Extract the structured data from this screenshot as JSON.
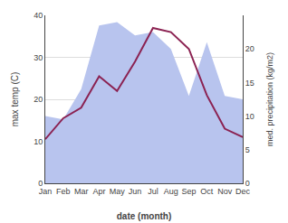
{
  "chart_data": {
    "type": "line",
    "x_label": "date (month)",
    "y_label": "max temp (C)",
    "y2_label": "med. precipitation (kg/m2)",
    "categories": [
      "Jan",
      "Feb",
      "Mar",
      "Apr",
      "May",
      "Jun",
      "Jul",
      "Aug",
      "Sep",
      "Oct",
      "Nov",
      "Dec"
    ],
    "series": [
      {
        "type": "area",
        "axis": "y2",
        "color": "#b8c4ee",
        "values": [
          10.0,
          9.5,
          14.0,
          23.5,
          24.0,
          22.0,
          22.5,
          20.0,
          13.0,
          21.0,
          13.0,
          12.5
        ]
      },
      {
        "type": "line",
        "color": "#8B2252",
        "values": [
          10.5,
          15.5,
          18.0,
          25.5,
          22.0,
          29.0,
          37.0,
          36.0,
          32.0,
          21.0,
          13.0,
          11.0
        ]
      }
    ],
    "ylim": [
      0,
      40
    ],
    "yticks": [
      0,
      10,
      20,
      30,
      40
    ],
    "y2lim": [
      0,
      25
    ],
    "y2ticks": [
      0,
      5,
      10,
      15,
      20
    ],
    "grid": true
  }
}
